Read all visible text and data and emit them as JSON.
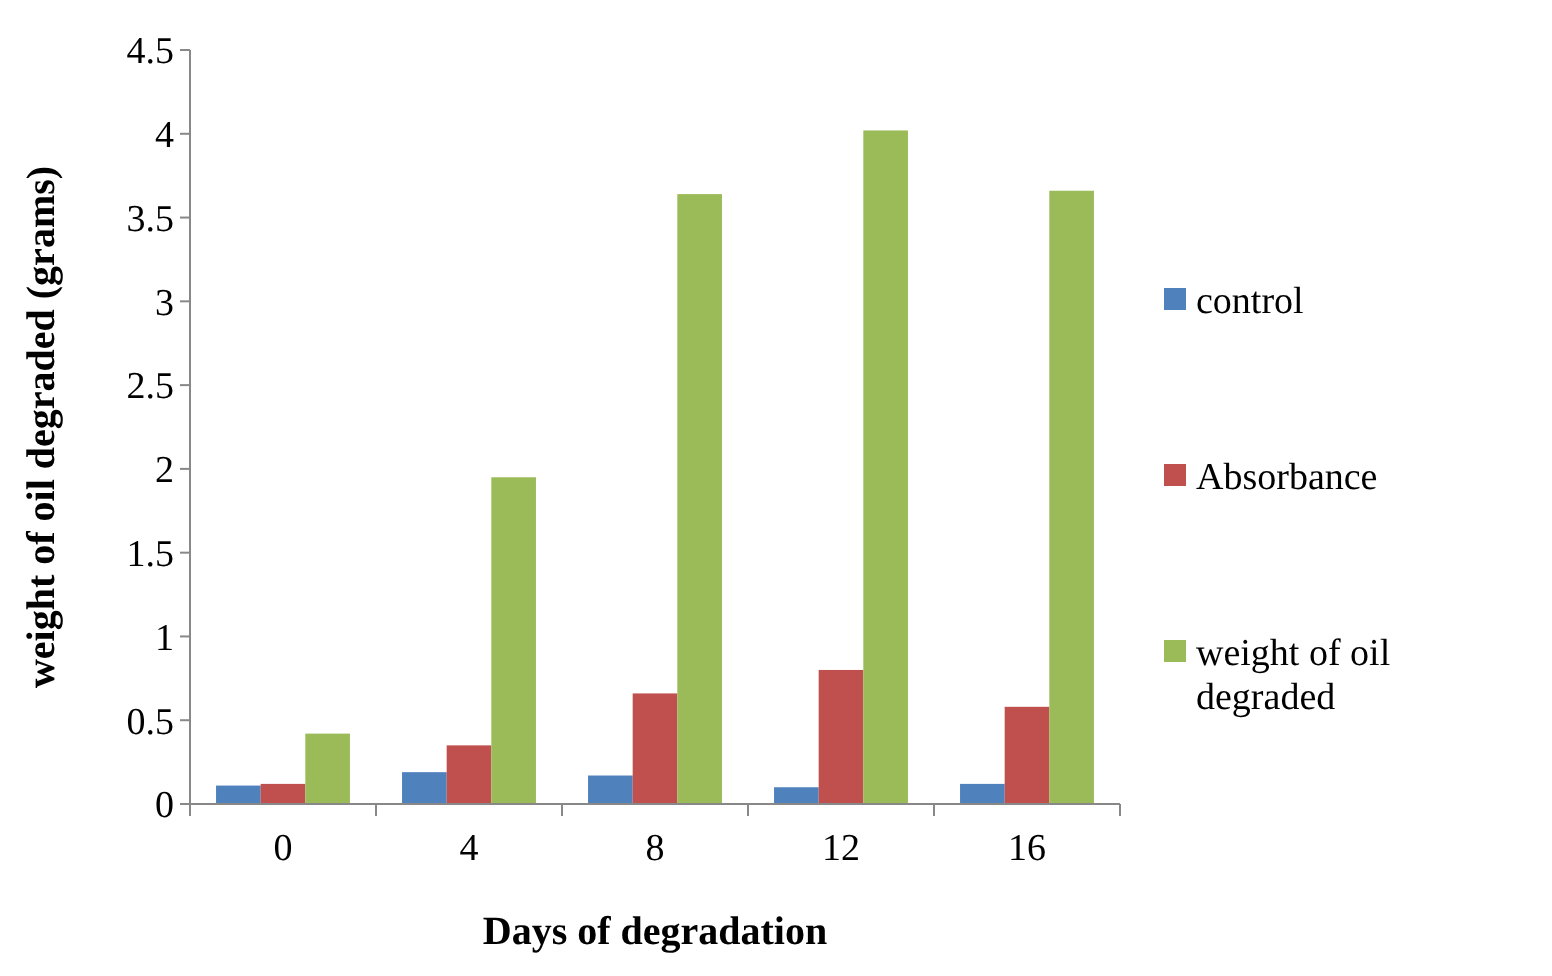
{
  "chart_data": {
    "type": "bar",
    "xlabel": "Days of degradation",
    "ylabel": "weight of oil degraded (grams)",
    "categories": [
      "0",
      "4",
      "8",
      "12",
      "16"
    ],
    "series": [
      {
        "name": "control",
        "color": "#4f81bd",
        "values": [
          0.11,
          0.19,
          0.17,
          0.1,
          0.12
        ]
      },
      {
        "name": "Absorbance",
        "color": "#c0504d",
        "values": [
          0.12,
          0.35,
          0.66,
          0.8,
          0.58
        ]
      },
      {
        "name": "weight of oil degraded",
        "color": "#9bbb59",
        "values": [
          0.42,
          1.95,
          3.64,
          4.02,
          3.66
        ]
      }
    ],
    "ylim": [
      0,
      4.5
    ],
    "yticks": [
      0,
      0.5,
      1,
      1.5,
      2,
      2.5,
      3,
      3.5,
      4,
      4.5
    ],
    "legend": "right",
    "grid": false
  }
}
